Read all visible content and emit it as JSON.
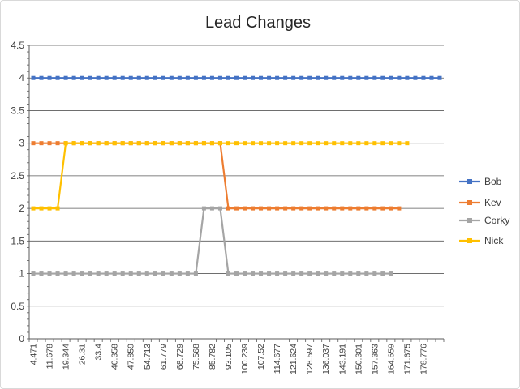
{
  "chart_data": {
    "type": "line",
    "title": "Lead Changes",
    "xlabel": "",
    "ylabel": "",
    "ylim": [
      0,
      4.5
    ],
    "ytick_step": 0.5,
    "yticks": [
      "0",
      "0.5",
      "1",
      "1.5",
      "2",
      "2.5",
      "3",
      "3.5",
      "4",
      "4.5"
    ],
    "grid": true,
    "legend_position": "right",
    "x_count": 51,
    "x_tick_labels": [
      "4.471",
      "11.678",
      "19.344",
      "26.31",
      "33.4",
      "40.358",
      "47.859",
      "54.713",
      "61.779",
      "68.729",
      "75.568",
      "85.782",
      "93.105",
      "100.239",
      "107.52",
      "114.677",
      "121.624",
      "128.597",
      "136.037",
      "143.191",
      "150.301",
      "157.363",
      "164.659",
      "171.675",
      "178.776"
    ],
    "series": [
      {
        "name": "Bob",
        "color": "#4472c4",
        "values": [
          4,
          4,
          4,
          4,
          4,
          4,
          4,
          4,
          4,
          4,
          4,
          4,
          4,
          4,
          4,
          4,
          4,
          4,
          4,
          4,
          4,
          4,
          4,
          4,
          4,
          4,
          4,
          4,
          4,
          4,
          4,
          4,
          4,
          4,
          4,
          4,
          4,
          4,
          4,
          4,
          4,
          4,
          4,
          4,
          4,
          4,
          4,
          4,
          4,
          4,
          4
        ]
      },
      {
        "name": "Kev",
        "color": "#ed7d31",
        "values": [
          3,
          3,
          3,
          3,
          3,
          3,
          3,
          3,
          3,
          3,
          3,
          3,
          3,
          3,
          3,
          3,
          3,
          3,
          3,
          3,
          3,
          3,
          3,
          3,
          2,
          2,
          2,
          2,
          2,
          2,
          2,
          2,
          2,
          2,
          2,
          2,
          2,
          2,
          2,
          2,
          2,
          2,
          2,
          2,
          2,
          2
        ]
      },
      {
        "name": "Corky",
        "color": "#a5a5a5",
        "values": [
          1,
          1,
          1,
          1,
          1,
          1,
          1,
          1,
          1,
          1,
          1,
          1,
          1,
          1,
          1,
          1,
          1,
          1,
          1,
          1,
          1,
          2,
          2,
          2,
          1,
          1,
          1,
          1,
          1,
          1,
          1,
          1,
          1,
          1,
          1,
          1,
          1,
          1,
          1,
          1,
          1,
          1,
          1,
          1,
          1
        ]
      },
      {
        "name": "Nick",
        "color": "#ffc000",
        "values": [
          2,
          2,
          2,
          2,
          3,
          3,
          3,
          3,
          3,
          3,
          3,
          3,
          3,
          3,
          3,
          3,
          3,
          3,
          3,
          3,
          3,
          3,
          3,
          3,
          3,
          3,
          3,
          3,
          3,
          3,
          3,
          3,
          3,
          3,
          3,
          3,
          3,
          3,
          3,
          3,
          3,
          3,
          3,
          3,
          3,
          3,
          3
        ]
      }
    ]
  }
}
